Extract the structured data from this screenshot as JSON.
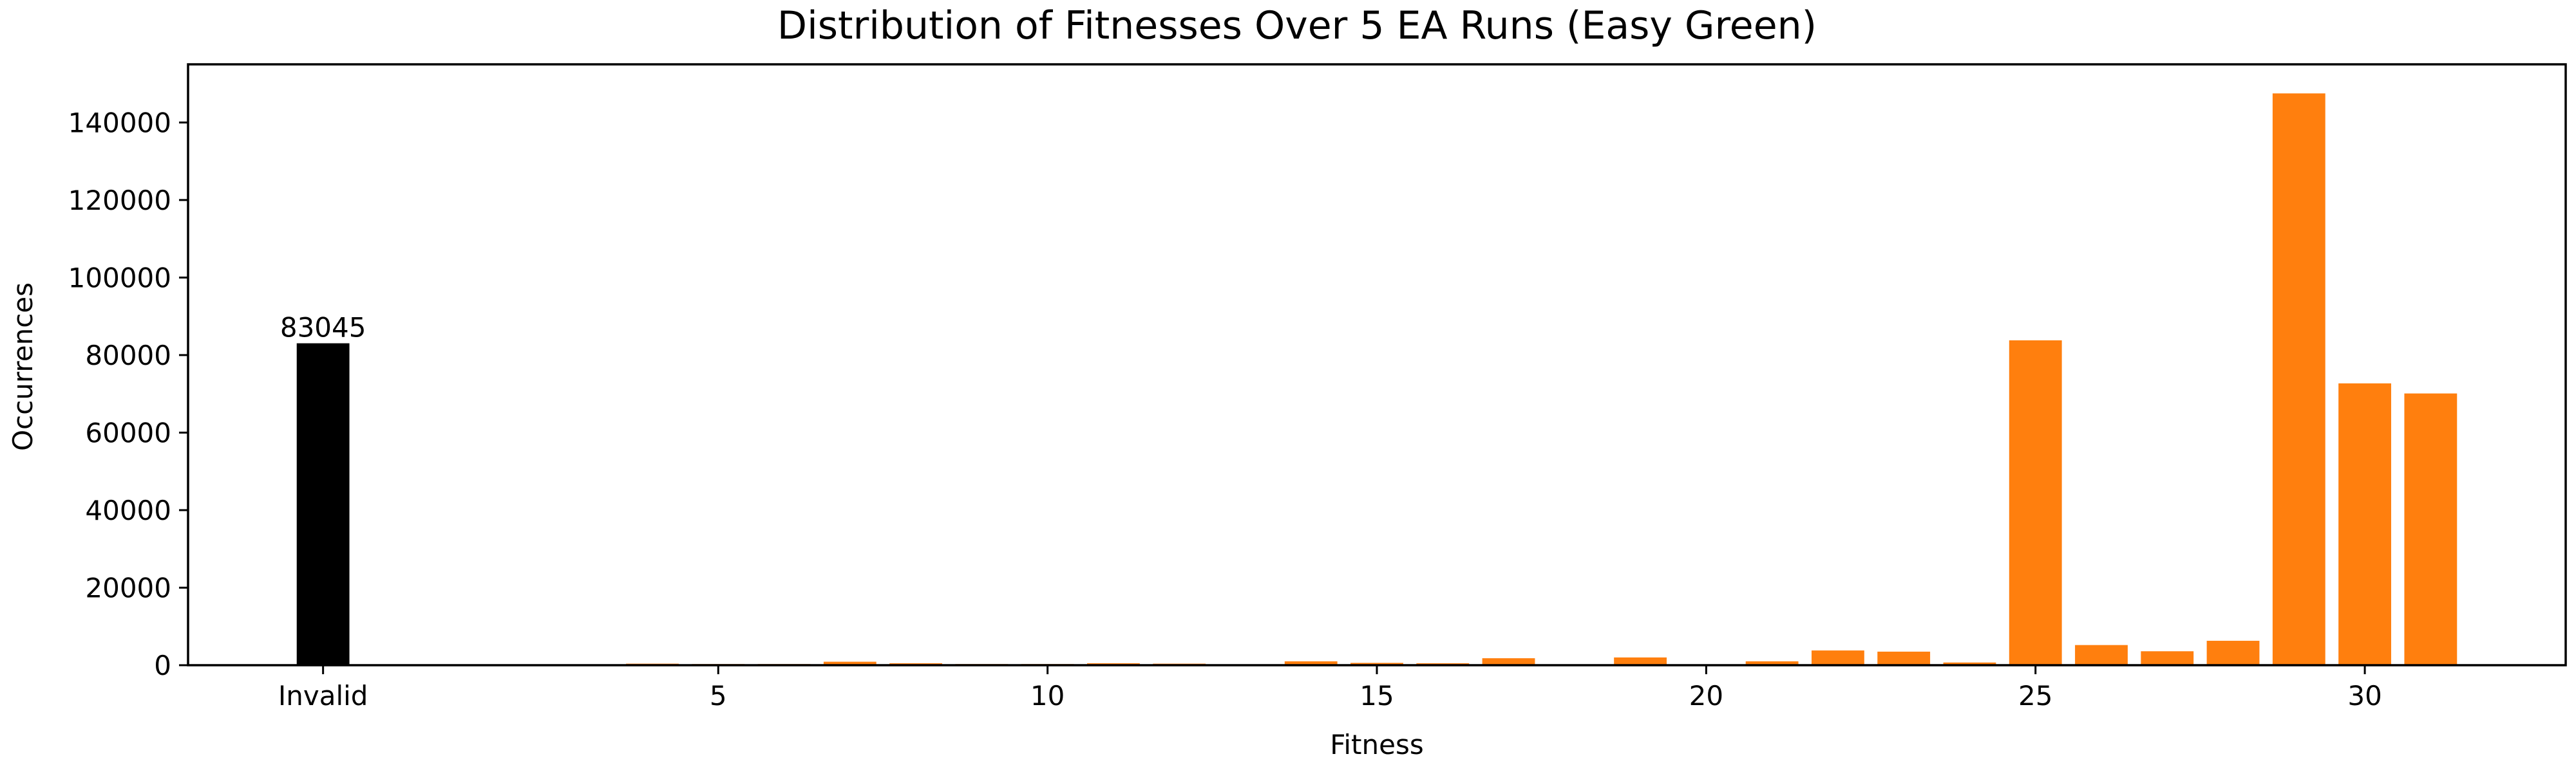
{
  "chart_data": {
    "type": "bar",
    "title": "Distribution of Fitnesses Over 5 EA Runs (Easy Green)",
    "xlabel": "Fitness",
    "ylabel": "Occurrences",
    "ylim": [
      0,
      155000
    ],
    "xlim": [
      -2.05,
      34.05
    ],
    "grid": false,
    "x_ticks": [
      {
        "value": 0,
        "label": "Invalid"
      },
      {
        "value": 6,
        "label": "5"
      },
      {
        "value": 11,
        "label": "10"
      },
      {
        "value": 16,
        "label": "15"
      },
      {
        "value": 21,
        "label": "20"
      },
      {
        "value": 26,
        "label": "25"
      },
      {
        "value": 31,
        "label": "30"
      }
    ],
    "y_ticks": [
      0,
      20000,
      40000,
      60000,
      80000,
      100000,
      120000,
      140000
    ],
    "invalid_bar": {
      "label": "Invalid",
      "value": 83045,
      "color": "#000000",
      "data_label": "83045"
    },
    "series": [
      {
        "color": "#ff7f0e",
        "bars": [
          {
            "fitness": 3,
            "value": 150
          },
          {
            "fitness": 4,
            "value": 400
          },
          {
            "fitness": 5,
            "value": 300
          },
          {
            "fitness": 6,
            "value": 300
          },
          {
            "fitness": 7,
            "value": 900
          },
          {
            "fitness": 8,
            "value": 500
          },
          {
            "fitness": 9,
            "value": 300
          },
          {
            "fitness": 10,
            "value": 300
          },
          {
            "fitness": 11,
            "value": 500
          },
          {
            "fitness": 12,
            "value": 400
          },
          {
            "fitness": 13,
            "value": 100
          },
          {
            "fitness": 14,
            "value": 1000
          },
          {
            "fitness": 15,
            "value": 600
          },
          {
            "fitness": 16,
            "value": 500
          },
          {
            "fitness": 17,
            "value": 1800
          },
          {
            "fitness": 18,
            "value": 100
          },
          {
            "fitness": 19,
            "value": 2000
          },
          {
            "fitness": 20,
            "value": 100
          },
          {
            "fitness": 21,
            "value": 1000
          },
          {
            "fitness": 22,
            "value": 3800
          },
          {
            "fitness": 23,
            "value": 3500
          },
          {
            "fitness": 24,
            "value": 700
          },
          {
            "fitness": 25,
            "value": 83800
          },
          {
            "fitness": 26,
            "value": 5200
          },
          {
            "fitness": 27,
            "value": 3600
          },
          {
            "fitness": 28,
            "value": 6300
          },
          {
            "fitness": 29,
            "value": 147500
          },
          {
            "fitness": 30,
            "value": 72700
          },
          {
            "fitness": 31,
            "value": 70100
          }
        ]
      }
    ]
  }
}
